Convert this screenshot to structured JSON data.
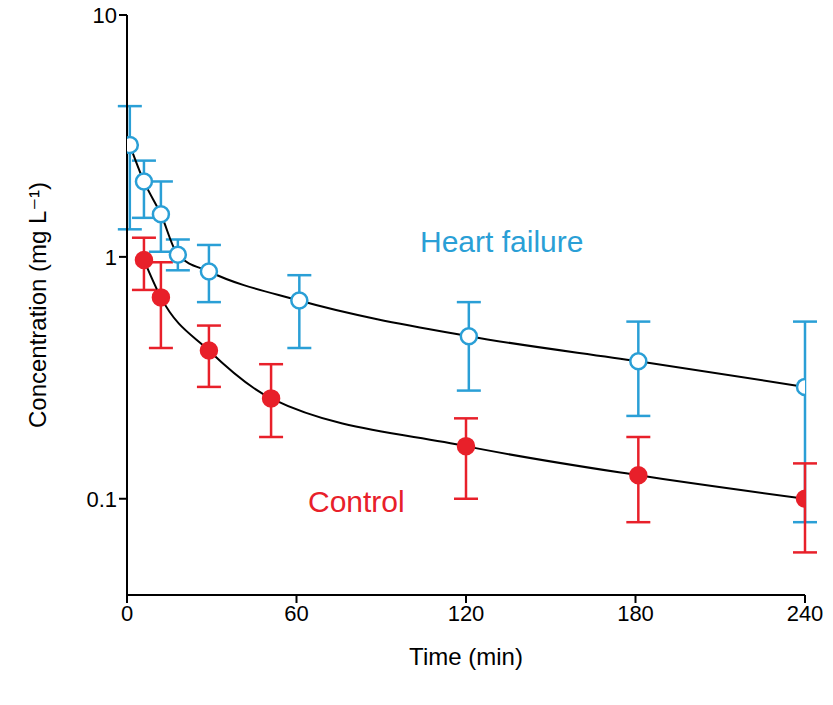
{
  "chart_data": {
    "type": "line",
    "x_label": "Time (min)",
    "y_label": "Concentration (mg L⁻¹)",
    "xlim": [
      0,
      240
    ],
    "xticks": [
      0,
      60,
      120,
      180,
      240
    ],
    "ylim": [
      0.04,
      10
    ],
    "yticks": [
      0.1,
      1,
      10
    ],
    "log": "y",
    "grid": false,
    "series": [
      {
        "name": "Heart failure",
        "color": "#2a9fd6",
        "marker": "open_circle",
        "x": [
          1,
          6,
          12,
          18,
          29,
          61,
          121,
          181,
          240
        ],
        "values": [
          2.9,
          2.05,
          1.5,
          1.02,
          0.87,
          0.66,
          0.47,
          0.37,
          0.29
        ],
        "lower": [
          1.3,
          1.45,
          1.05,
          0.88,
          0.65,
          0.42,
          0.28,
          0.22,
          0.08
        ],
        "upper": [
          4.2,
          2.5,
          2.05,
          1.18,
          1.12,
          0.84,
          0.65,
          0.54,
          0.54
        ]
      },
      {
        "name": "Control",
        "color": "#e8202a",
        "marker": "filled_circle",
        "x": [
          6,
          12,
          29,
          51,
          120,
          181,
          240
        ],
        "values": [
          0.97,
          0.68,
          0.41,
          0.26,
          0.165,
          0.125,
          0.1
        ],
        "lower": [
          0.73,
          0.42,
          0.29,
          0.18,
          0.1,
          0.08,
          0.06
        ],
        "upper": [
          1.2,
          0.95,
          0.52,
          0.36,
          0.215,
          0.18,
          0.14
        ]
      }
    ]
  }
}
